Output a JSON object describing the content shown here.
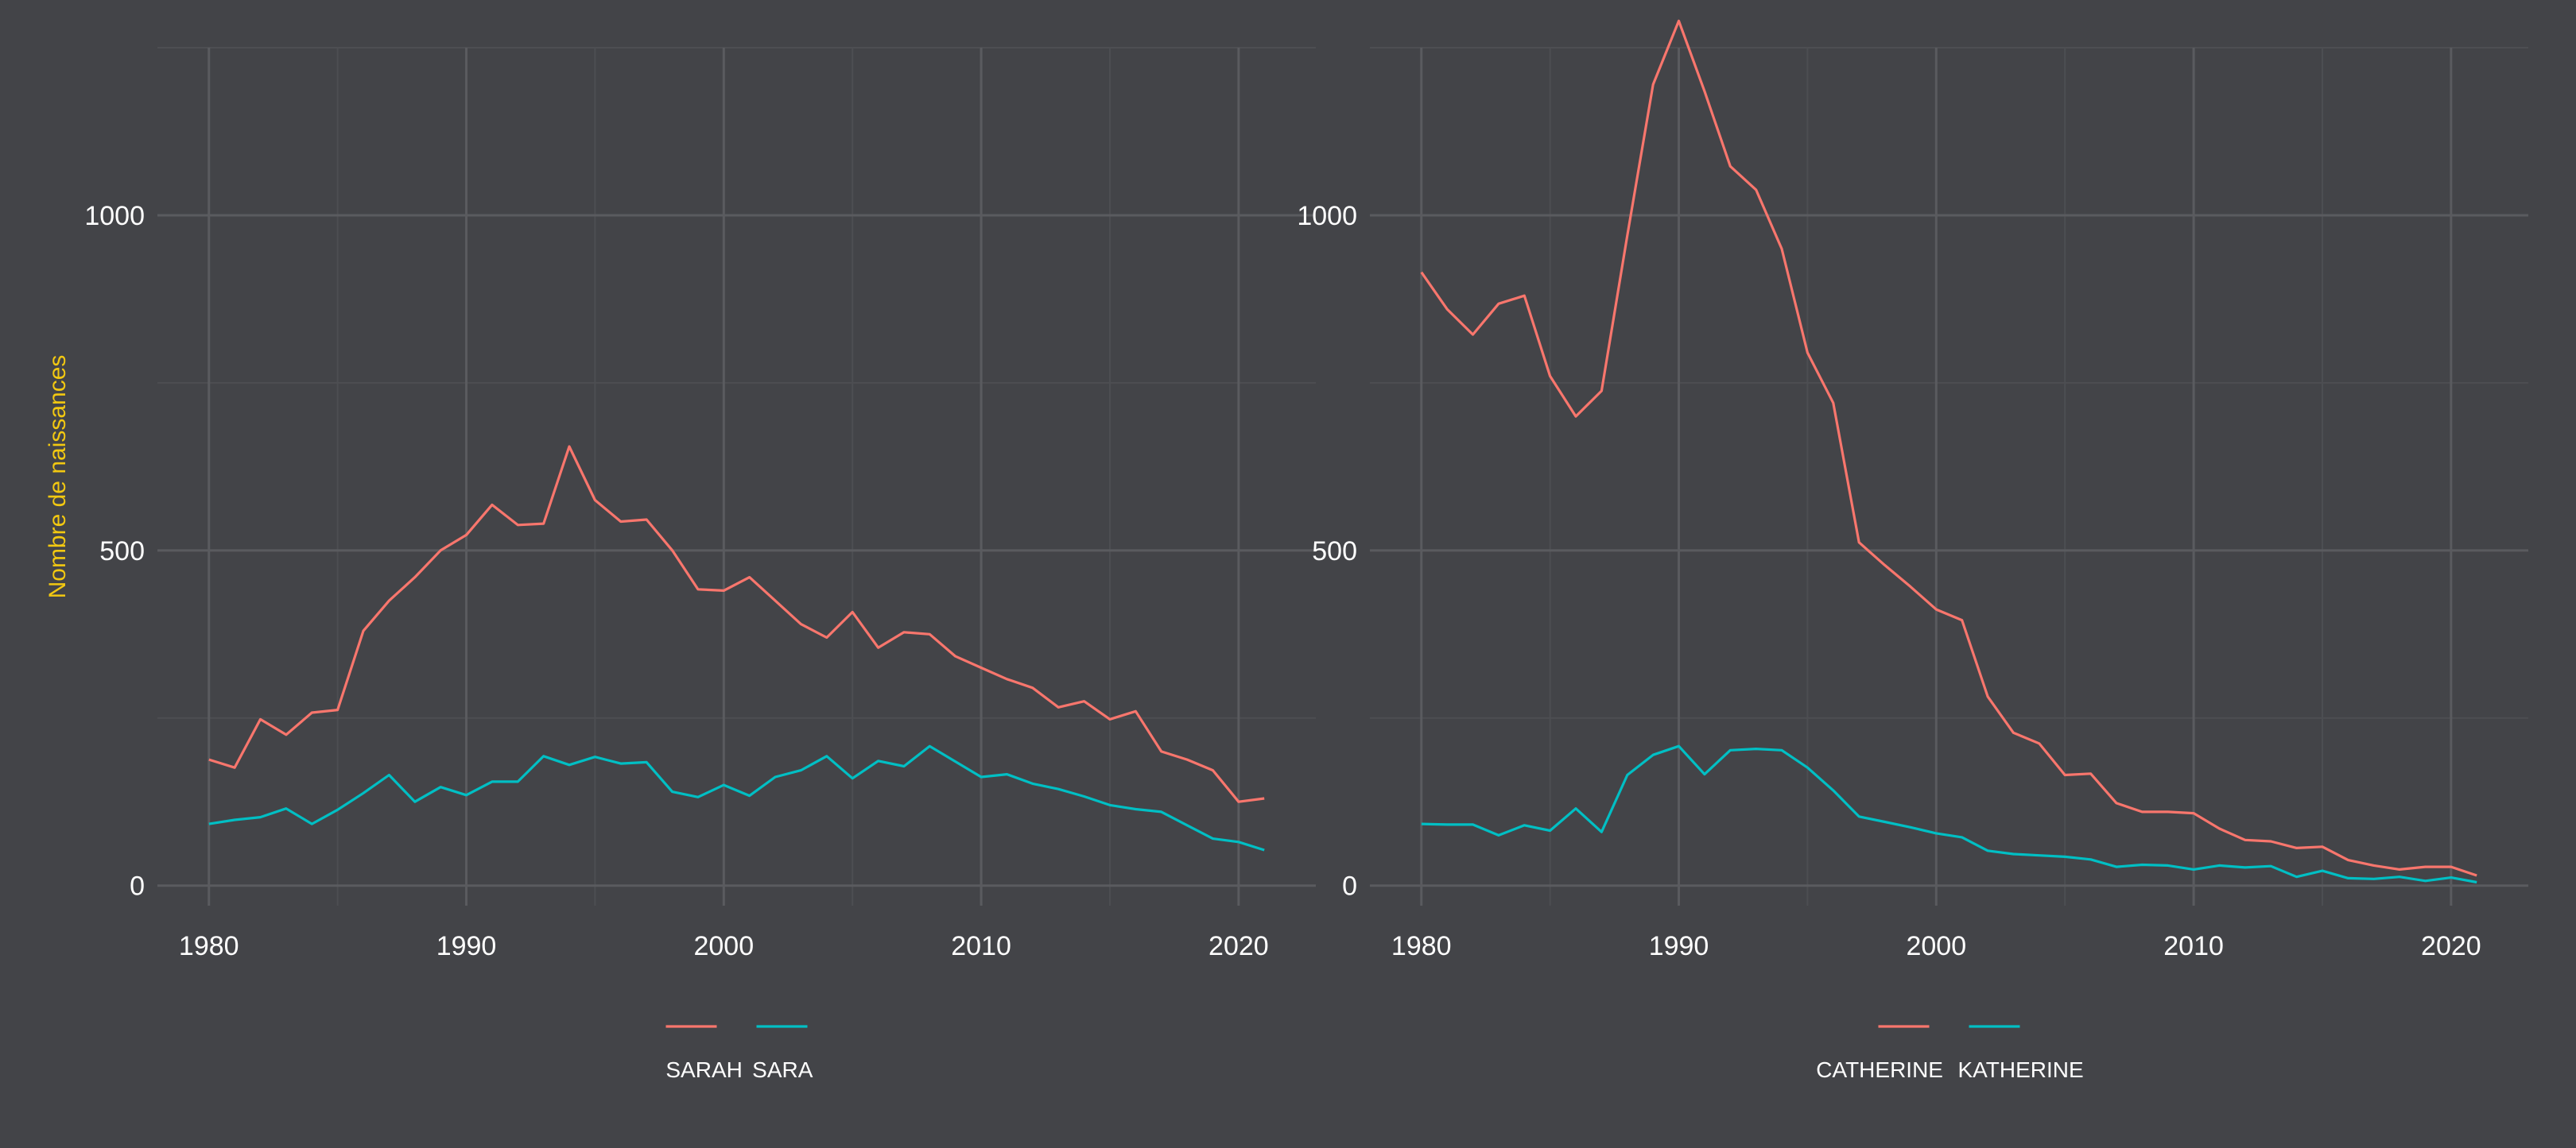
{
  "colors": {
    "background": "#434448",
    "grid_major": "#5a5b5f",
    "grid_minor": "#4d4e52",
    "series_1": "#f8766d",
    "series_2": "#00bfc4",
    "axis_text": "#ffffff",
    "ylabel": "#f2c811"
  },
  "chart_data": [
    {
      "type": "line",
      "ylabel": "Nombre de naissances",
      "xlim": [
        1978,
        2023
      ],
      "ylim": [
        -30,
        1250
      ],
      "xticks": [
        1980,
        1990,
        2000,
        2010,
        2020
      ],
      "yticks": [
        0,
        500,
        1000
      ],
      "grid": true,
      "legend_position": "bottom",
      "x": [
        1980,
        1981,
        1982,
        1983,
        1984,
        1985,
        1986,
        1987,
        1988,
        1989,
        1990,
        1991,
        1992,
        1993,
        1994,
        1995,
        1996,
        1997,
        1998,
        1999,
        2000,
        2001,
        2002,
        2003,
        2004,
        2005,
        2006,
        2007,
        2008,
        2009,
        2010,
        2011,
        2012,
        2013,
        2014,
        2015,
        2016,
        2017,
        2018,
        2019,
        2020,
        2021
      ],
      "series": [
        {
          "name": "SARAH",
          "values": [
            188,
            176,
            248,
            225,
            258,
            262,
            380,
            425,
            460,
            500,
            523,
            568,
            538,
            540,
            655,
            575,
            543,
            546,
            500,
            442,
            440,
            460,
            425,
            390,
            370,
            408,
            355,
            378,
            375,
            342,
            325,
            308,
            295,
            266,
            275,
            248,
            260,
            200,
            188,
            172,
            125,
            130
          ]
        },
        {
          "name": "SARA",
          "values": [
            92,
            98,
            102,
            115,
            92,
            113,
            138,
            165,
            125,
            147,
            135,
            155,
            155,
            193,
            180,
            192,
            182,
            184,
            140,
            132,
            150,
            134,
            162,
            172,
            193,
            160,
            186,
            178,
            208,
            185,
            162,
            166,
            152,
            144,
            133,
            120,
            114,
            110,
            90,
            70,
            65,
            53
          ]
        }
      ]
    },
    {
      "type": "line",
      "ylabel": "",
      "xlim": [
        1978,
        2023
      ],
      "ylim": [
        -30,
        1250
      ],
      "xticks": [
        1980,
        1990,
        2000,
        2010,
        2020
      ],
      "yticks": [
        0,
        500,
        1000
      ],
      "grid": true,
      "legend_position": "bottom",
      "x": [
        1980,
        1981,
        1982,
        1983,
        1984,
        1985,
        1986,
        1987,
        1988,
        1989,
        1990,
        1991,
        1992,
        1993,
        1994,
        1995,
        1996,
        1997,
        1998,
        1999,
        2000,
        2001,
        2002,
        2003,
        2004,
        2005,
        2006,
        2007,
        2008,
        2009,
        2010,
        2011,
        2012,
        2013,
        2014,
        2015,
        2016,
        2017,
        2018,
        2019,
        2020,
        2021
      ],
      "series": [
        {
          "name": "CATHERINE",
          "values": [
            915,
            860,
            822,
            868,
            880,
            760,
            700,
            738,
            970,
            1195,
            1290,
            1185,
            1073,
            1038,
            950,
            795,
            720,
            512,
            478,
            446,
            412,
            396,
            282,
            228,
            212,
            165,
            167,
            123,
            110,
            110,
            108,
            85,
            68,
            66,
            56,
            58,
            38,
            30,
            24,
            28,
            28,
            15
          ]
        },
        {
          "name": "KATHERINE",
          "values": [
            92,
            91,
            91,
            75,
            90,
            82,
            115,
            80,
            165,
            195,
            208,
            166,
            202,
            204,
            202,
            176,
            142,
            103,
            95,
            87,
            78,
            72,
            52,
            47,
            45,
            43,
            39,
            28,
            31,
            30,
            24,
            30,
            27,
            29,
            13,
            22,
            11,
            10,
            13,
            7,
            12,
            5
          ]
        }
      ]
    }
  ]
}
